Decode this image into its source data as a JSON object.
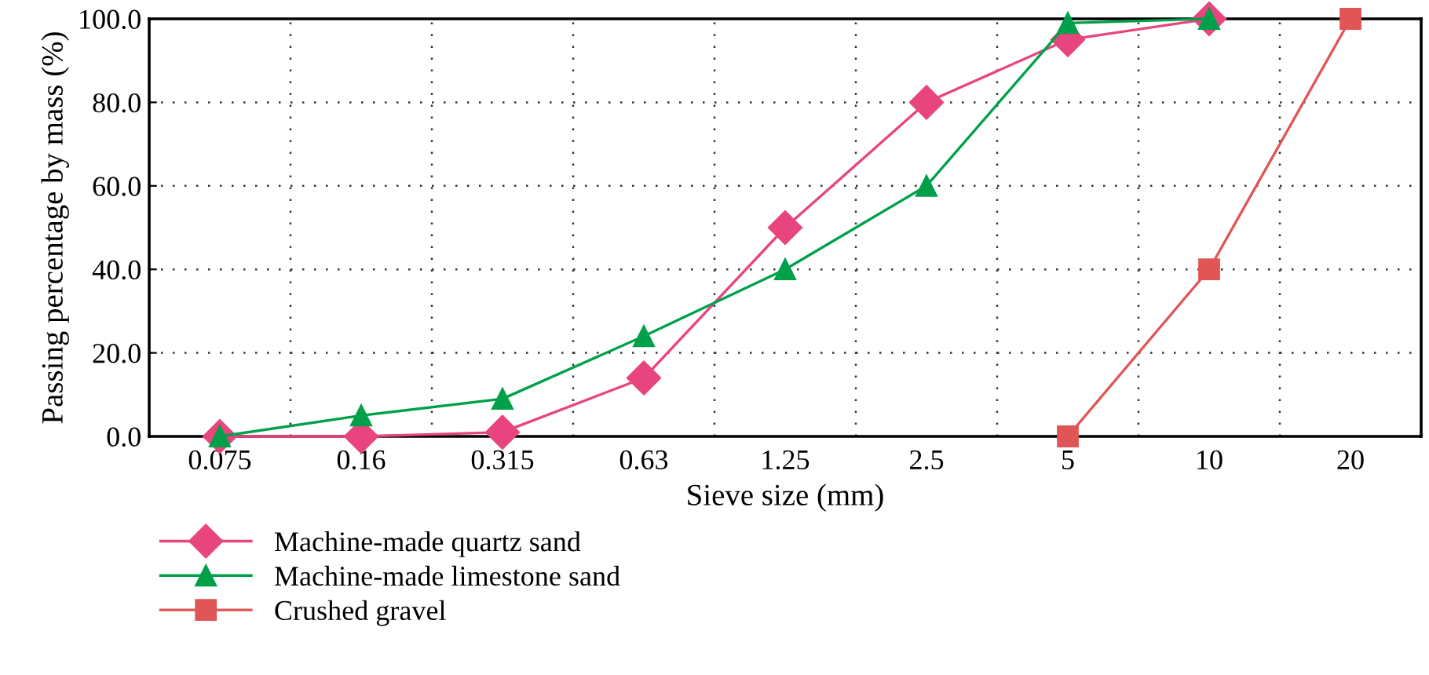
{
  "chart_data": {
    "type": "line",
    "xlabel": "Sieve size (mm)",
    "ylabel": "Passing percentage by mass (%)",
    "categories": [
      "0.075",
      "0.16",
      "0.315",
      "0.63",
      "1.25",
      "2.5",
      "5",
      "10",
      "20"
    ],
    "series": [
      {
        "name": "Machine-made quartz sand",
        "color": "#e8457f",
        "marker": "diamond",
        "values": [
          0,
          0,
          1,
          14,
          50,
          80,
          95,
          100,
          null
        ]
      },
      {
        "name": "Machine-made limestone sand",
        "color": "#00a04a",
        "marker": "triangle",
        "values": [
          0,
          5,
          9,
          24,
          40,
          60,
          99,
          100,
          null
        ]
      },
      {
        "name": "Crushed gravel",
        "color": "#e05555",
        "marker": "square",
        "values": [
          null,
          null,
          null,
          null,
          null,
          null,
          0,
          40,
          100
        ]
      }
    ],
    "ylim": [
      0,
      100
    ],
    "yticks": [
      {
        "value": 0,
        "label": "0.0"
      },
      {
        "value": 20,
        "label": "20.0"
      },
      {
        "value": 40,
        "label": "40.0"
      },
      {
        "value": 60,
        "label": "60.0"
      },
      {
        "value": 80,
        "label": "80.0"
      },
      {
        "value": 100,
        "label": "100.0"
      }
    ],
    "grid": true,
    "legend": "bottom left",
    "line_style": "solid"
  }
}
